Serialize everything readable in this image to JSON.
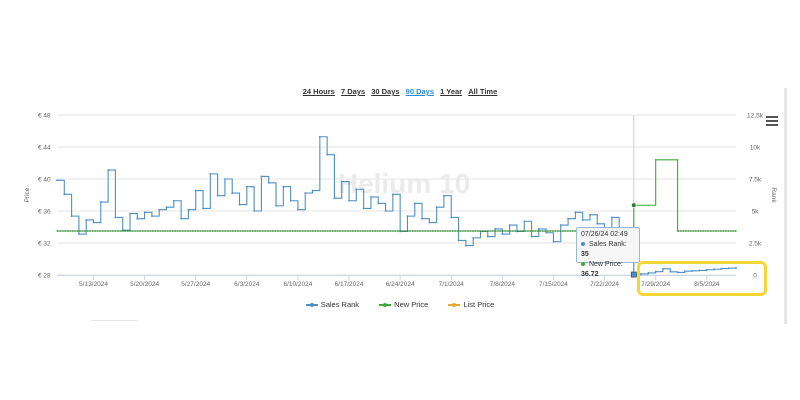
{
  "range_selector": {
    "options": [
      "24 Hours",
      "7 Days",
      "30 Days",
      "90 Days",
      "1 Year",
      "All Time"
    ],
    "active": "90 Days"
  },
  "watermark": "Helium 10",
  "chart_data": {
    "type": "line",
    "x_type": "date",
    "x_ticks": [
      "5/13/2024",
      "5/20/2024",
      "5/27/2024",
      "6/3/2024",
      "6/10/2024",
      "6/17/2024",
      "6/24/2024",
      "7/1/2024",
      "7/8/2024",
      "7/15/2024",
      "7/22/2024",
      "7/29/2024",
      "8/5/2024"
    ],
    "xlim": [
      "2024-05-08",
      "2024-08-09"
    ],
    "y_left": {
      "label": "Price",
      "ticks": [
        "€ 28",
        "€ 32",
        "€ 36",
        "€ 40",
        "€ 44",
        "€ 48"
      ],
      "range": [
        28,
        48
      ]
    },
    "y_right": {
      "label": "Rank",
      "ticks": [
        "0",
        "2.5k",
        "5k",
        "7.5k",
        "10k",
        "12.5k"
      ],
      "range": [
        0,
        12500
      ]
    },
    "grid": true,
    "legend_position": "bottom",
    "series": [
      {
        "name": "Sales Rank",
        "axis": "right",
        "color": "#4f8fc7",
        "style": "step",
        "points": [
          [
            "2024-05-08",
            7400
          ],
          [
            "2024-05-09",
            6300
          ],
          [
            "2024-05-10",
            4600
          ],
          [
            "2024-05-11",
            3200
          ],
          [
            "2024-05-12",
            4300
          ],
          [
            "2024-05-13",
            4100
          ],
          [
            "2024-05-14",
            5700
          ],
          [
            "2024-05-15",
            8200
          ],
          [
            "2024-05-16",
            4500
          ],
          [
            "2024-05-17",
            3500
          ],
          [
            "2024-05-18",
            4800
          ],
          [
            "2024-05-19",
            4400
          ],
          [
            "2024-05-20",
            4900
          ],
          [
            "2024-05-21",
            4600
          ],
          [
            "2024-05-22",
            5100
          ],
          [
            "2024-05-23",
            5300
          ],
          [
            "2024-05-24",
            5800
          ],
          [
            "2024-05-25",
            4400
          ],
          [
            "2024-05-26",
            5100
          ],
          [
            "2024-05-27",
            6600
          ],
          [
            "2024-05-28",
            5200
          ],
          [
            "2024-05-29",
            7900
          ],
          [
            "2024-05-30",
            6200
          ],
          [
            "2024-05-31",
            7500
          ],
          [
            "2024-06-01",
            6400
          ],
          [
            "2024-06-02",
            5500
          ],
          [
            "2024-06-03",
            6900
          ],
          [
            "2024-06-04",
            5000
          ],
          [
            "2024-06-05",
            7700
          ],
          [
            "2024-06-06",
            7200
          ],
          [
            "2024-06-07",
            5400
          ],
          [
            "2024-06-08",
            6900
          ],
          [
            "2024-06-09",
            5800
          ],
          [
            "2024-06-10",
            5100
          ],
          [
            "2024-06-11",
            6400
          ],
          [
            "2024-06-12",
            6600
          ],
          [
            "2024-06-13",
            10800
          ],
          [
            "2024-06-14",
            9400
          ],
          [
            "2024-06-15",
            6000
          ],
          [
            "2024-06-16",
            7300
          ],
          [
            "2024-06-17",
            5800
          ],
          [
            "2024-06-18",
            6700
          ],
          [
            "2024-06-19",
            5200
          ],
          [
            "2024-06-20",
            6100
          ],
          [
            "2024-06-21",
            5600
          ],
          [
            "2024-06-22",
            5000
          ],
          [
            "2024-06-23",
            6300
          ],
          [
            "2024-06-24",
            3400
          ],
          [
            "2024-06-25",
            4600
          ],
          [
            "2024-06-26",
            5600
          ],
          [
            "2024-06-27",
            4400
          ],
          [
            "2024-06-28",
            4100
          ],
          [
            "2024-06-29",
            5300
          ],
          [
            "2024-06-30",
            6200
          ],
          [
            "2024-07-01",
            4500
          ],
          [
            "2024-07-02",
            2700
          ],
          [
            "2024-07-03",
            2300
          ],
          [
            "2024-07-04",
            2900
          ],
          [
            "2024-07-05",
            3400
          ],
          [
            "2024-07-06",
            3000
          ],
          [
            "2024-07-07",
            3600
          ],
          [
            "2024-07-08",
            3200
          ],
          [
            "2024-07-09",
            3900
          ],
          [
            "2024-07-10",
            3400
          ],
          [
            "2024-07-11",
            4200
          ],
          [
            "2024-07-12",
            3000
          ],
          [
            "2024-07-13",
            3600
          ],
          [
            "2024-07-14",
            3300
          ],
          [
            "2024-07-15",
            2600
          ],
          [
            "2024-07-16",
            3900
          ],
          [
            "2024-07-17",
            4400
          ],
          [
            "2024-07-18",
            4900
          ],
          [
            "2024-07-19",
            4300
          ],
          [
            "2024-07-20",
            4700
          ],
          [
            "2024-07-21",
            4000
          ],
          [
            "2024-07-22",
            3600
          ],
          [
            "2024-07-23",
            4500
          ],
          [
            "2024-07-24",
            3500
          ],
          [
            "2024-07-25",
            2600
          ],
          [
            "2024-07-26",
            35
          ],
          [
            "2024-07-27",
            80
          ],
          [
            "2024-07-28",
            160
          ],
          [
            "2024-07-29",
            260
          ],
          [
            "2024-07-30",
            480
          ],
          [
            "2024-07-31",
            250
          ],
          [
            "2024-08-01",
            200
          ],
          [
            "2024-08-02",
            300
          ],
          [
            "2024-08-03",
            330
          ],
          [
            "2024-08-04",
            360
          ],
          [
            "2024-08-05",
            410
          ],
          [
            "2024-08-06",
            450
          ],
          [
            "2024-08-07",
            500
          ],
          [
            "2024-08-08",
            530
          ],
          [
            "2024-08-09",
            560
          ]
        ]
      },
      {
        "name": "New Price",
        "axis": "left",
        "color": "#3bab3b",
        "style": "step",
        "points": [
          [
            "2024-05-08",
            33.5
          ],
          [
            "2024-07-25",
            33.5
          ],
          [
            "2024-07-26",
            36.72
          ],
          [
            "2024-07-28",
            36.72
          ],
          [
            "2024-07-29",
            42.4
          ],
          [
            "2024-08-01",
            42.4
          ],
          [
            "2024-08-01",
            33.5
          ],
          [
            "2024-08-09",
            33.5
          ]
        ]
      },
      {
        "name": "List Price",
        "axis": "left",
        "color": "#e8a637",
        "style": "step",
        "points": []
      }
    ]
  },
  "tooltip": {
    "date": "07/26/24 02:49",
    "sales_rank_label": "Sales Rank:",
    "sales_rank_value": "35",
    "new_price_label": "New Price:",
    "new_price_value": "36.72"
  },
  "colors": {
    "sales_rank": "#4f8fc7",
    "new_price": "#3bab3b",
    "list_price": "#e8a637",
    "highlight": "#f4d637"
  }
}
